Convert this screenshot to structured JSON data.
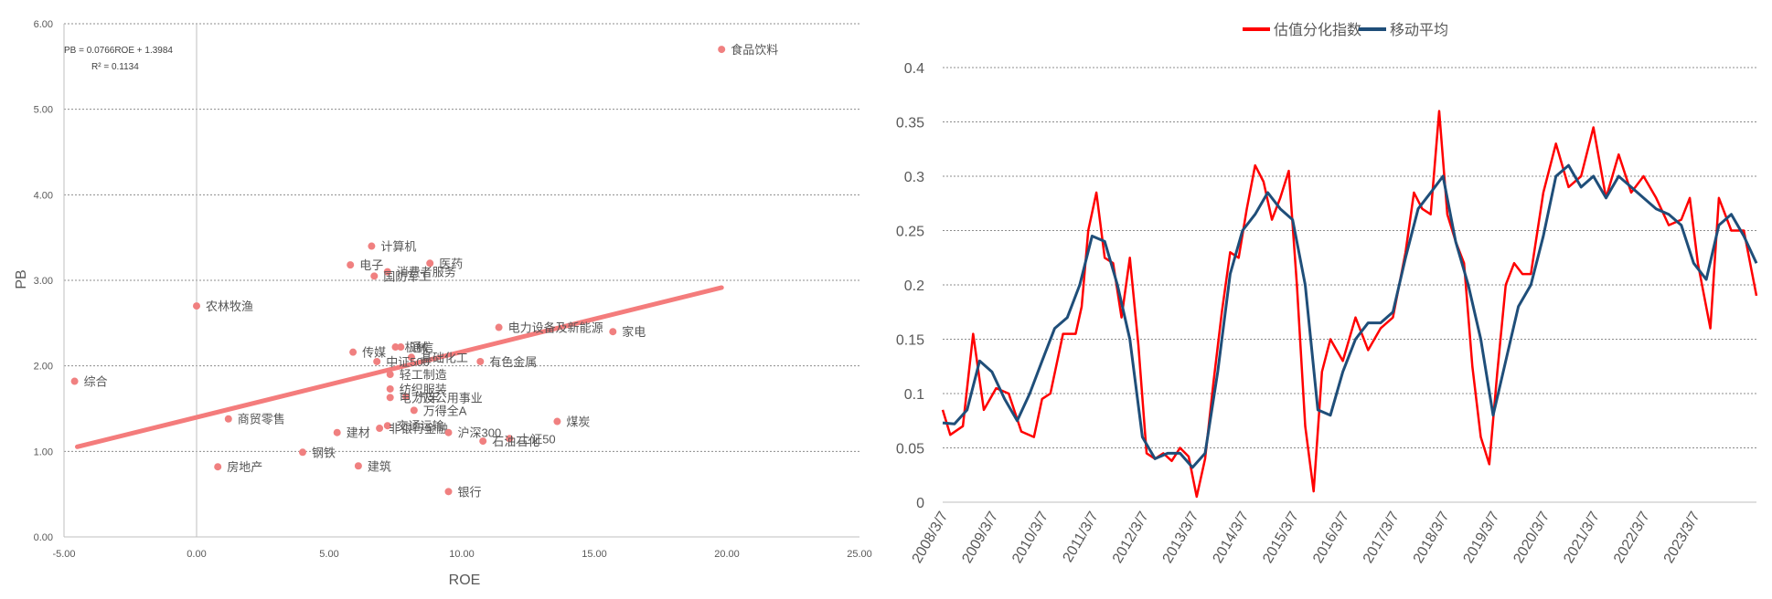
{
  "chart_data": [
    {
      "type": "scatter",
      "xlabel": "ROE",
      "ylabel": "PB",
      "xlim": [
        -5,
        25
      ],
      "ylim": [
        0,
        6
      ],
      "x_ticks": [
        "-5.00",
        "0.00",
        "5.00",
        "10.00",
        "15.00",
        "20.00",
        "25.00"
      ],
      "y_ticks": [
        "0.00",
        "1.00",
        "2.00",
        "3.00",
        "4.00",
        "5.00",
        "6.00"
      ],
      "grid": true,
      "equation": "PB = 0.0766ROE + 1.3984",
      "r_squared": "R² = 0.1134",
      "trendline": {
        "slope": 0.0766,
        "intercept": 1.3984,
        "x_range": [
          -4.5,
          19.8
        ]
      },
      "colors": {
        "points": "#f08080",
        "trend": "#f47c7c",
        "label": "#555555"
      },
      "points": [
        {
          "label": "食品饮料",
          "x": 19.8,
          "y": 5.7
        },
        {
          "label": "计算机",
          "x": 6.6,
          "y": 3.4
        },
        {
          "label": "电子",
          "x": 5.8,
          "y": 3.18
        },
        {
          "label": "医药",
          "x": 8.8,
          "y": 3.2
        },
        {
          "label": "消费者服务",
          "x": 7.2,
          "y": 3.1
        },
        {
          "label": "国防军工",
          "x": 6.7,
          "y": 3.05
        },
        {
          "label": "农林牧渔",
          "x": 0.0,
          "y": 2.7
        },
        {
          "label": "电力设备及新能源",
          "x": 11.4,
          "y": 2.45
        },
        {
          "label": "家电",
          "x": 15.7,
          "y": 2.4
        },
        {
          "label": "通信",
          "x": 7.7,
          "y": 2.22
        },
        {
          "label": "机械",
          "x": 7.5,
          "y": 2.22
        },
        {
          "label": "传媒",
          "x": 5.9,
          "y": 2.16
        },
        {
          "label": "基础化工",
          "x": 8.1,
          "y": 2.1
        },
        {
          "label": "中证500",
          "x": 6.8,
          "y": 2.05
        },
        {
          "label": "有色金属",
          "x": 10.7,
          "y": 2.05
        },
        {
          "label": "综合",
          "x": -4.6,
          "y": 1.82
        },
        {
          "label": "轻工制造",
          "x": 7.3,
          "y": 1.9
        },
        {
          "label": "纺织服装",
          "x": 7.3,
          "y": 1.73
        },
        {
          "label": "汽车",
          "x": 7.9,
          "y": 1.64
        },
        {
          "label": "电力及公用事业",
          "x": 7.3,
          "y": 1.63
        },
        {
          "label": "万得全A",
          "x": 8.2,
          "y": 1.48
        },
        {
          "label": "商贸零售",
          "x": 1.2,
          "y": 1.38
        },
        {
          "label": "交通运输",
          "x": 7.2,
          "y": 1.3
        },
        {
          "label": "非银行金融",
          "x": 6.9,
          "y": 1.27
        },
        {
          "label": "煤炭",
          "x": 13.6,
          "y": 1.35
        },
        {
          "label": "建材",
          "x": 5.3,
          "y": 1.22
        },
        {
          "label": "沪深300",
          "x": 9.5,
          "y": 1.22
        },
        {
          "label": "上证50",
          "x": 11.8,
          "y": 1.15
        },
        {
          "label": "石油石化",
          "x": 10.8,
          "y": 1.12
        },
        {
          "label": "钢铁",
          "x": 4.0,
          "y": 0.99
        },
        {
          "label": "房地产",
          "x": 0.8,
          "y": 0.82
        },
        {
          "label": "建筑",
          "x": 6.1,
          "y": 0.83
        },
        {
          "label": "银行",
          "x": 9.5,
          "y": 0.53
        }
      ]
    },
    {
      "type": "line",
      "ylim": [
        0,
        0.4
      ],
      "y_ticks": [
        "0",
        "0.05",
        "0.1",
        "0.15",
        "0.2",
        "0.25",
        "0.3",
        "0.35",
        "0.4"
      ],
      "x_ticks": [
        "2008/3/7",
        "2009/3/7",
        "2010/3/7",
        "2011/3/7",
        "2012/3/7",
        "2013/3/7",
        "2014/3/7",
        "2015/3/7",
        "2016/3/7",
        "2017/3/7",
        "2018/3/7",
        "2019/3/7",
        "2020/3/7",
        "2021/3/7",
        "2022/3/7",
        "2023/3/7"
      ],
      "x_start": "2008-03-07",
      "x_end": "2024-06-01",
      "grid": true,
      "legend_position": "top-center",
      "series": [
        {
          "name": "估值分化指数",
          "color": "#ff0000",
          "x": [
            "2008-03-07",
            "2008-05-01",
            "2008-08-01",
            "2008-10-15",
            "2009-01-01",
            "2009-04-01",
            "2009-07-01",
            "2009-10-01",
            "2010-01-01",
            "2010-03-01",
            "2010-05-01",
            "2010-08-01",
            "2010-11-01",
            "2010-12-15",
            "2011-02-01",
            "2011-04-01",
            "2011-06-01",
            "2011-08-01",
            "2011-10-01",
            "2011-12-01",
            "2012-02-01",
            "2012-04-01",
            "2012-06-01",
            "2012-08-01",
            "2012-10-01",
            "2012-12-01",
            "2013-02-01",
            "2013-04-01",
            "2013-06-01",
            "2013-08-01",
            "2013-10-01",
            "2013-12-01",
            "2014-02-01",
            "2014-04-01",
            "2014-06-01",
            "2014-08-01",
            "2014-10-01",
            "2014-12-01",
            "2015-02-01",
            "2015-04-01",
            "2015-06-01",
            "2015-08-01",
            "2015-10-01",
            "2015-12-01",
            "2016-03-01",
            "2016-06-01",
            "2016-09-01",
            "2016-12-01",
            "2017-03-01",
            "2017-06-01",
            "2017-08-01",
            "2017-10-01",
            "2017-12-01",
            "2018-02-01",
            "2018-04-01",
            "2018-06-01",
            "2018-08-01",
            "2018-10-01",
            "2018-12-01",
            "2019-02-01",
            "2019-04-01",
            "2019-06-01",
            "2019-08-01",
            "2019-10-01",
            "2019-12-01",
            "2020-03-01",
            "2020-06-01",
            "2020-09-01",
            "2020-12-01",
            "2021-03-01",
            "2021-06-01",
            "2021-09-01",
            "2021-12-01",
            "2022-03-01",
            "2022-06-01",
            "2022-09-01",
            "2022-12-01",
            "2023-02-01",
            "2023-04-01",
            "2023-07-01",
            "2023-09-01",
            "2023-12-01",
            "2024-03-01",
            "2024-06-01"
          ],
          "y": [
            0.085,
            0.062,
            0.07,
            0.155,
            0.085,
            0.105,
            0.1,
            0.065,
            0.06,
            0.095,
            0.1,
            0.155,
            0.155,
            0.18,
            0.25,
            0.285,
            0.225,
            0.22,
            0.17,
            0.225,
            0.145,
            0.045,
            0.04,
            0.045,
            0.038,
            0.05,
            0.042,
            0.005,
            0.04,
            0.11,
            0.175,
            0.23,
            0.225,
            0.27,
            0.31,
            0.295,
            0.26,
            0.28,
            0.305,
            0.2,
            0.07,
            0.01,
            0.12,
            0.15,
            0.13,
            0.17,
            0.14,
            0.16,
            0.17,
            0.23,
            0.285,
            0.27,
            0.265,
            0.36,
            0.265,
            0.24,
            0.22,
            0.125,
            0.06,
            0.035,
            0.12,
            0.2,
            0.22,
            0.21,
            0.21,
            0.285,
            0.33,
            0.29,
            0.3,
            0.345,
            0.28,
            0.32,
            0.285,
            0.3,
            0.28,
            0.255,
            0.26,
            0.28,
            0.22,
            0.16,
            0.28,
            0.25,
            0.25,
            0.19
          ]
        },
        {
          "name": "移动平均",
          "color": "#1f4e79",
          "x": [
            "2008-03-07",
            "2008-06-01",
            "2008-09-01",
            "2008-12-01",
            "2009-03-01",
            "2009-06-01",
            "2009-09-01",
            "2009-12-01",
            "2010-03-01",
            "2010-06-01",
            "2010-09-01",
            "2010-12-01",
            "2011-03-01",
            "2011-06-01",
            "2011-09-01",
            "2011-12-01",
            "2012-03-01",
            "2012-06-01",
            "2012-09-01",
            "2012-12-01",
            "2013-03-01",
            "2013-06-01",
            "2013-09-01",
            "2013-12-01",
            "2014-03-01",
            "2014-06-01",
            "2014-09-01",
            "2014-12-01",
            "2015-03-01",
            "2015-06-01",
            "2015-09-01",
            "2015-12-01",
            "2016-03-01",
            "2016-06-01",
            "2016-09-01",
            "2016-12-01",
            "2017-03-01",
            "2017-06-01",
            "2017-09-01",
            "2017-12-01",
            "2018-03-01",
            "2018-06-01",
            "2018-09-01",
            "2018-12-01",
            "2019-03-01",
            "2019-06-01",
            "2019-09-01",
            "2019-12-01",
            "2020-03-01",
            "2020-06-01",
            "2020-09-01",
            "2020-12-01",
            "2021-03-01",
            "2021-06-01",
            "2021-09-01",
            "2021-12-01",
            "2022-03-01",
            "2022-06-01",
            "2022-09-01",
            "2022-12-01",
            "2023-03-01",
            "2023-06-01",
            "2023-09-01",
            "2023-12-01",
            "2024-03-01",
            "2024-06-01"
          ],
          "y": [
            0.073,
            0.072,
            0.085,
            0.13,
            0.12,
            0.095,
            0.075,
            0.1,
            0.13,
            0.16,
            0.17,
            0.2,
            0.245,
            0.24,
            0.2,
            0.15,
            0.06,
            0.04,
            0.045,
            0.045,
            0.032,
            0.045,
            0.12,
            0.21,
            0.25,
            0.265,
            0.285,
            0.27,
            0.26,
            0.2,
            0.085,
            0.08,
            0.12,
            0.15,
            0.165,
            0.165,
            0.175,
            0.225,
            0.27,
            0.285,
            0.3,
            0.24,
            0.2,
            0.15,
            0.08,
            0.13,
            0.18,
            0.2,
            0.245,
            0.3,
            0.31,
            0.29,
            0.3,
            0.28,
            0.3,
            0.29,
            0.28,
            0.27,
            0.265,
            0.255,
            0.22,
            0.205,
            0.255,
            0.265,
            0.245,
            0.22
          ]
        }
      ]
    }
  ]
}
